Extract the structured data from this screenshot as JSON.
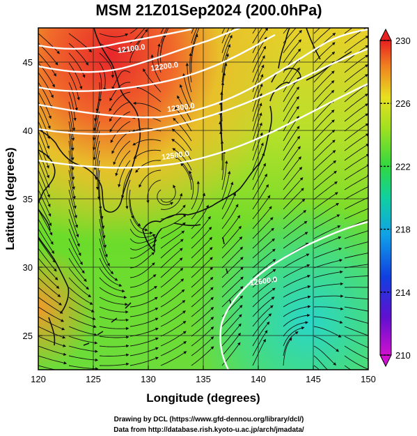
{
  "title": "MSM 21Z01Sep2024 (200.0hPa)",
  "xlabel": "Longitude (degrees)",
  "ylabel": "Latitude  (degrees)",
  "x_ticks": [
    "120",
    "125",
    "130",
    "135",
    "140",
    "145",
    "150"
  ],
  "y_ticks": [
    "25",
    "30",
    "35",
    "40",
    "45"
  ],
  "x_range": [
    120,
    150
  ],
  "y_range": [
    22.5,
    47.5
  ],
  "colorbar": {
    "ticks": [
      "210",
      "214",
      "218",
      "222",
      "226",
      "230"
    ],
    "range": [
      210,
      230
    ],
    "units": ""
  },
  "contours": [
    {
      "label": "12100.0",
      "lon": 128.5,
      "lat": 45.8
    },
    {
      "label": "12200.0",
      "lon": 131.5,
      "lat": 44.5
    },
    {
      "label": "12300.0",
      "lon": 133.0,
      "lat": 41.5
    },
    {
      "label": "12500.0",
      "lon": 132.5,
      "lat": 38.0
    },
    {
      "label": "12600.0",
      "lon": 140.5,
      "lat": 28.8
    }
  ],
  "credits": {
    "line1": "Drawing by DCL (https://www.gfd-dennou.org/library/dcl/)",
    "line2": "Data from http://database.rish.kyoto-u.ac.jp/arch/jmadata/"
  },
  "colors": {
    "warm": "#e84a2a",
    "cool": "#30d8c0",
    "mid": "#7ee02a"
  }
}
